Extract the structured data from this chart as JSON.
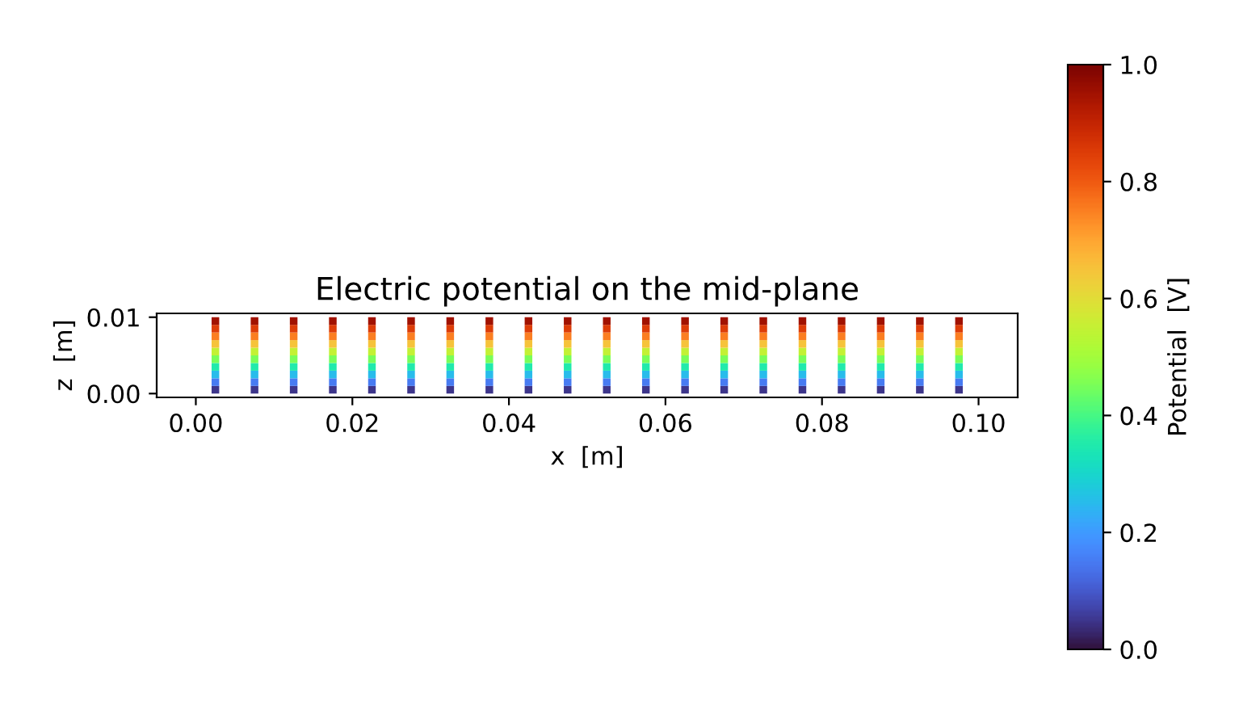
{
  "chart_data": {
    "type": "scatter",
    "title": "Electric potential on the mid-plane",
    "xlabel": "x  [m]",
    "ylabel": "z  [m]",
    "clabel": "Potential  [V]",
    "marker": "square",
    "x": [
      0.0025,
      0.0075,
      0.0125,
      0.0175,
      0.0225,
      0.0275,
      0.0325,
      0.0375,
      0.0425,
      0.0475,
      0.0525,
      0.0575,
      0.0625,
      0.0675,
      0.0725,
      0.0775,
      0.0825,
      0.0875,
      0.0925,
      0.0975,
      0.0025,
      0.0075,
      0.0125,
      0.0175,
      0.0225,
      0.0275,
      0.0325,
      0.0375,
      0.0425,
      0.0475,
      0.0525,
      0.0575,
      0.0625,
      0.0675,
      0.0725,
      0.0775,
      0.0825,
      0.0875,
      0.0925,
      0.0975,
      0.0025,
      0.0075,
      0.0125,
      0.0175,
      0.0225,
      0.0275,
      0.0325,
      0.0375,
      0.0425,
      0.0475,
      0.0525,
      0.0575,
      0.0625,
      0.0675,
      0.0725,
      0.0775,
      0.0825,
      0.0875,
      0.0925,
      0.0975,
      0.0025,
      0.0075,
      0.0125,
      0.0175,
      0.0225,
      0.0275,
      0.0325,
      0.0375,
      0.0425,
      0.0475,
      0.0525,
      0.0575,
      0.0625,
      0.0675,
      0.0725,
      0.0775,
      0.0825,
      0.0875,
      0.0925,
      0.0975,
      0.0025,
      0.0075,
      0.0125,
      0.0175,
      0.0225,
      0.0275,
      0.0325,
      0.0375,
      0.0425,
      0.0475,
      0.0525,
      0.0575,
      0.0625,
      0.0675,
      0.0725,
      0.0775,
      0.0825,
      0.0875,
      0.0925,
      0.0975,
      0.0025,
      0.0075,
      0.0125,
      0.0175,
      0.0225,
      0.0275,
      0.0325,
      0.0375,
      0.0425,
      0.0475,
      0.0525,
      0.0575,
      0.0625,
      0.0675,
      0.0725,
      0.0775,
      0.0825,
      0.0875,
      0.0925,
      0.0975,
      0.0025,
      0.0075,
      0.0125,
      0.0175,
      0.0225,
      0.0275,
      0.0325,
      0.0375,
      0.0425,
      0.0475,
      0.0525,
      0.0575,
      0.0625,
      0.0675,
      0.0725,
      0.0775,
      0.0825,
      0.0875,
      0.0925,
      0.0975,
      0.0025,
      0.0075,
      0.0125,
      0.0175,
      0.0225,
      0.0275,
      0.0325,
      0.0375,
      0.0425,
      0.0475,
      0.0525,
      0.0575,
      0.0625,
      0.0675,
      0.0725,
      0.0775,
      0.0825,
      0.0875,
      0.0925,
      0.0975,
      0.0025,
      0.0075,
      0.0125,
      0.0175,
      0.0225,
      0.0275,
      0.0325,
      0.0375,
      0.0425,
      0.0475,
      0.0525,
      0.0575,
      0.0625,
      0.0675,
      0.0725,
      0.0775,
      0.0825,
      0.0875,
      0.0925,
      0.0975,
      0.0025,
      0.0075,
      0.0125,
      0.0175,
      0.0225,
      0.0275,
      0.0325,
      0.0375,
      0.0425,
      0.0475,
      0.0525,
      0.0575,
      0.0625,
      0.0675,
      0.0725,
      0.0775,
      0.0825,
      0.0875,
      0.0925,
      0.0975
    ],
    "values": [
      0.0005,
      0.0005,
      0.0005,
      0.0005,
      0.0005,
      0.0005,
      0.0005,
      0.0005,
      0.0005,
      0.0005,
      0.0005,
      0.0005,
      0.0005,
      0.0005,
      0.0005,
      0.0005,
      0.0005,
      0.0005,
      0.0005,
      0.0005,
      0.0015,
      0.0015,
      0.0015,
      0.0015,
      0.0015,
      0.0015,
      0.0015,
      0.0015,
      0.0015,
      0.0015,
      0.0015,
      0.0015,
      0.0015,
      0.0015,
      0.0015,
      0.0015,
      0.0015,
      0.0015,
      0.0015,
      0.0015,
      0.0025,
      0.0025,
      0.0025,
      0.0025,
      0.0025,
      0.0025,
      0.0025,
      0.0025,
      0.0025,
      0.0025,
      0.0025,
      0.0025,
      0.0025,
      0.0025,
      0.0025,
      0.0025,
      0.0025,
      0.0025,
      0.0025,
      0.0025,
      0.0035,
      0.0035,
      0.0035,
      0.0035,
      0.0035,
      0.0035,
      0.0035,
      0.0035,
      0.0035,
      0.0035,
      0.0035,
      0.0035,
      0.0035,
      0.0035,
      0.0035,
      0.0035,
      0.0035,
      0.0035,
      0.0035,
      0.0035,
      0.0045,
      0.0045,
      0.0045,
      0.0045,
      0.0045,
      0.0045,
      0.0045,
      0.0045,
      0.0045,
      0.0045,
      0.0045,
      0.0045,
      0.0045,
      0.0045,
      0.0045,
      0.0045,
      0.0045,
      0.0045,
      0.0045,
      0.0045,
      0.0055,
      0.0055,
      0.0055,
      0.0055,
      0.0055,
      0.0055,
      0.0055,
      0.0055,
      0.0055,
      0.0055,
      0.0055,
      0.0055,
      0.0055,
      0.0055,
      0.0055,
      0.0055,
      0.0055,
      0.0055,
      0.0055,
      0.0055,
      0.0065,
      0.0065,
      0.0065,
      0.0065,
      0.0065,
      0.0065,
      0.0065,
      0.0065,
      0.0065,
      0.0065,
      0.0065,
      0.0065,
      0.0065,
      0.0065,
      0.0065,
      0.0065,
      0.0065,
      0.0065,
      0.0065,
      0.0065,
      0.0075,
      0.0075,
      0.0075,
      0.0075,
      0.0075,
      0.0075,
      0.0075,
      0.0075,
      0.0075,
      0.0075,
      0.0075,
      0.0075,
      0.0075,
      0.0075,
      0.0075,
      0.0075,
      0.0075,
      0.0075,
      0.0075,
      0.0075,
      0.0085,
      0.0085,
      0.0085,
      0.0085,
      0.0085,
      0.0085,
      0.0085,
      0.0085,
      0.0085,
      0.0085,
      0.0085,
      0.0085,
      0.0085,
      0.0085,
      0.0085,
      0.0085,
      0.0085,
      0.0085,
      0.0085,
      0.0085,
      0.0095,
      0.0095,
      0.0095,
      0.0095,
      0.0095,
      0.0095,
      0.0095,
      0.0095,
      0.0095,
      0.0095,
      0.0095,
      0.0095,
      0.0095,
      0.0095,
      0.0095,
      0.0095,
      0.0095,
      0.0095,
      0.0095,
      0.0095
    ],
    "cvalues": [
      0.05,
      0.05,
      0.05,
      0.05,
      0.05,
      0.05,
      0.05,
      0.05,
      0.05,
      0.05,
      0.05,
      0.05,
      0.05,
      0.05,
      0.05,
      0.05,
      0.05,
      0.05,
      0.05,
      0.05,
      0.15,
      0.15,
      0.15,
      0.15,
      0.15,
      0.15,
      0.15,
      0.15,
      0.15,
      0.15,
      0.15,
      0.15,
      0.15,
      0.15,
      0.15,
      0.15,
      0.15,
      0.15,
      0.15,
      0.15,
      0.25,
      0.25,
      0.25,
      0.25,
      0.25,
      0.25,
      0.25,
      0.25,
      0.25,
      0.25,
      0.25,
      0.25,
      0.25,
      0.25,
      0.25,
      0.25,
      0.25,
      0.25,
      0.25,
      0.25,
      0.35,
      0.35,
      0.35,
      0.35,
      0.35,
      0.35,
      0.35,
      0.35,
      0.35,
      0.35,
      0.35,
      0.35,
      0.35,
      0.35,
      0.35,
      0.35,
      0.35,
      0.35,
      0.35,
      0.35,
      0.45,
      0.45,
      0.45,
      0.45,
      0.45,
      0.45,
      0.45,
      0.45,
      0.45,
      0.45,
      0.45,
      0.45,
      0.45,
      0.45,
      0.45,
      0.45,
      0.45,
      0.45,
      0.45,
      0.45,
      0.55,
      0.55,
      0.55,
      0.55,
      0.55,
      0.55,
      0.55,
      0.55,
      0.55,
      0.55,
      0.55,
      0.55,
      0.55,
      0.55,
      0.55,
      0.55,
      0.55,
      0.55,
      0.55,
      0.55,
      0.65,
      0.65,
      0.65,
      0.65,
      0.65,
      0.65,
      0.65,
      0.65,
      0.65,
      0.65,
      0.65,
      0.65,
      0.65,
      0.65,
      0.65,
      0.65,
      0.65,
      0.65,
      0.65,
      0.65,
      0.75,
      0.75,
      0.75,
      0.75,
      0.75,
      0.75,
      0.75,
      0.75,
      0.75,
      0.75,
      0.75,
      0.75,
      0.75,
      0.75,
      0.75,
      0.75,
      0.75,
      0.75,
      0.75,
      0.75,
      0.85,
      0.85,
      0.85,
      0.85,
      0.85,
      0.85,
      0.85,
      0.85,
      0.85,
      0.85,
      0.85,
      0.85,
      0.85,
      0.85,
      0.85,
      0.85,
      0.85,
      0.85,
      0.85,
      0.85,
      0.95,
      0.95,
      0.95,
      0.95,
      0.95,
      0.95,
      0.95,
      0.95,
      0.95,
      0.95,
      0.95,
      0.95,
      0.95,
      0.95,
      0.95,
      0.95,
      0.95,
      0.95,
      0.95,
      0.95
    ],
    "xlim": [
      -0.005,
      0.105
    ],
    "ylim": [
      -0.0005,
      0.0105
    ],
    "xticks": [
      {
        "value": 0,
        "label": "0.00"
      },
      {
        "value": 0.02,
        "label": "0.02"
      },
      {
        "value": 0.04,
        "label": "0.04"
      },
      {
        "value": 0.06,
        "label": "0.06"
      },
      {
        "value": 0.08,
        "label": "0.08"
      },
      {
        "value": 0.1,
        "label": "0.10"
      }
    ],
    "yticks": [
      {
        "value": 0,
        "label": "0.00"
      },
      {
        "value": 0.01,
        "label": "0.01"
      }
    ],
    "clim": [
      0,
      1
    ],
    "cticks": [
      {
        "value": 0,
        "label": "0.0"
      },
      {
        "value": 0.2,
        "label": "0.2"
      },
      {
        "value": 0.4,
        "label": "0.4"
      },
      {
        "value": 0.6,
        "label": "0.6"
      },
      {
        "value": 0.8,
        "label": "0.8"
      },
      {
        "value": 1,
        "label": "1.0"
      }
    ]
  }
}
